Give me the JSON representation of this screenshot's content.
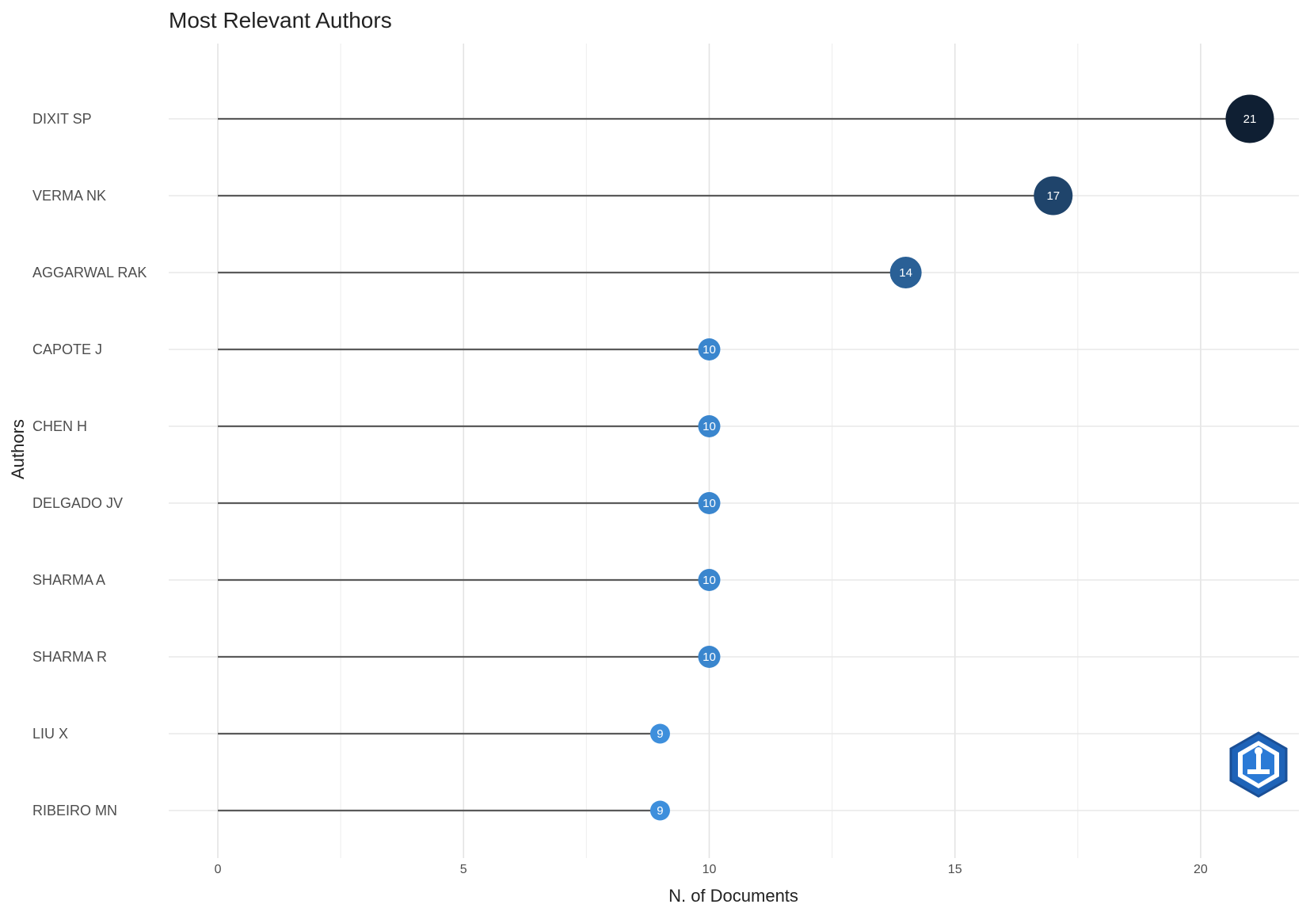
{
  "chart_data": {
    "type": "lollipop",
    "title": "Most Relevant Authors",
    "xlabel": "N. of Documents",
    "ylabel": "Authors",
    "xlim": [
      -1,
      22
    ],
    "xticks": [
      0,
      5,
      10,
      15,
      20
    ],
    "grid": true,
    "categories": [
      "DIXIT SP",
      "VERMA NK",
      "AGGARWAL RAK",
      "CAPOTE J",
      "CHEN H",
      "DELGADO JV",
      "SHARMA A",
      "SHARMA R",
      "LIU X",
      "RIBEIRO MN"
    ],
    "values": [
      21,
      17,
      14,
      10,
      10,
      10,
      10,
      10,
      9,
      9
    ],
    "color_scale": {
      "low": "#3e8fdc",
      "high": "#0f1f33"
    }
  }
}
